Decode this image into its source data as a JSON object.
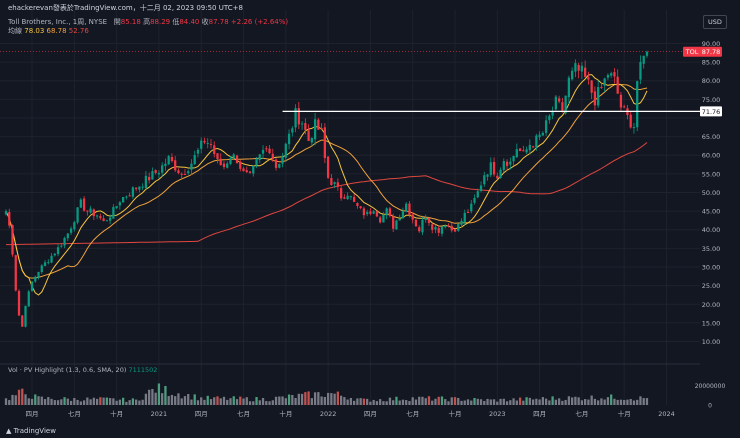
{
  "meta": {
    "publisher_line": "ehackerevan發表於TradingView.com，十二月 02, 2023 09:50 UTC+8",
    "currency_button": "USD",
    "logo_text": "TradingView"
  },
  "legend": {
    "symbol": "Toll Brothers, Inc., 1周, NYSE",
    "open_label": "開",
    "open": "85.18",
    "high_label": "高",
    "high": "88.29",
    "low_label": "低",
    "low": "84.40",
    "close_label": "收",
    "close": "87.78",
    "change": "+2.26 (+2.64%)",
    "ma_label": "均線",
    "ma1": "78.03",
    "ma2": "68.78",
    "ma3": "52.76"
  },
  "volume_header": {
    "text": "Vol · PV Highlight (1.3, 0.6, SMA, 20)",
    "value": "7111502"
  },
  "colors": {
    "background": "#131722",
    "up": "#089981",
    "down": "#f23645",
    "ma1": "#f7c53b",
    "ma2": "#f0a23b",
    "ma3": "#e0473f",
    "price_label_bg": "#f23645",
    "level_label_bg": "#ffffff",
    "grid": "#1e222d",
    "axis_text": "#b2b5be"
  },
  "chart_data": {
    "type": "candlestick",
    "title": "Toll Brothers, Inc., 1周, NYSE",
    "interval": "1W",
    "ylim": [
      4.5,
      92
    ],
    "y_ticks": [
      90,
      85,
      80,
      75,
      70,
      65,
      60,
      55,
      50,
      45,
      40,
      35,
      30,
      25,
      20,
      15,
      10
    ],
    "y_tick_labels": [
      "90.00",
      "85.00",
      "80.00",
      "75.00",
      "70.00",
      "65.00",
      "60.00",
      "55.00",
      "50.00",
      "45.00",
      "40.00",
      "35.00",
      "30.00",
      "25.00",
      "20.00",
      "15.00",
      "10.00"
    ],
    "time_index_range": [
      0,
      205
    ],
    "x_ticks": [
      {
        "label": "四月",
        "t": 8
      },
      {
        "label": "七月",
        "t": 21
      },
      {
        "label": "十月",
        "t": 34
      },
      {
        "label": "2021",
        "t": 47
      },
      {
        "label": "四月",
        "t": 60
      },
      {
        "label": "七月",
        "t": 73
      },
      {
        "label": "十月",
        "t": 86
      },
      {
        "label": "2022",
        "t": 99
      },
      {
        "label": "四月",
        "t": 112
      },
      {
        "label": "七月",
        "t": 125
      },
      {
        "label": "十月",
        "t": 138
      },
      {
        "label": "2023",
        "t": 151
      },
      {
        "label": "四月",
        "t": 164
      },
      {
        "label": "七月",
        "t": 177
      },
      {
        "label": "十月",
        "t": 190
      },
      {
        "label": "2024",
        "t": 203
      }
    ],
    "price_anchors": [
      [
        0,
        45
      ],
      [
        1,
        41
      ],
      [
        2,
        34
      ],
      [
        3,
        24
      ],
      [
        4,
        17
      ],
      [
        5,
        14
      ],
      [
        6,
        20
      ],
      [
        8,
        26
      ],
      [
        10,
        29
      ],
      [
        13,
        32
      ],
      [
        16,
        35
      ],
      [
        19,
        39
      ],
      [
        21,
        43
      ],
      [
        23,
        47
      ],
      [
        25,
        45
      ],
      [
        28,
        44
      ],
      [
        30,
        42
      ],
      [
        33,
        45
      ],
      [
        35,
        48
      ],
      [
        38,
        50
      ],
      [
        41,
        52
      ],
      [
        44,
        54
      ],
      [
        47,
        56
      ],
      [
        50,
        59
      ],
      [
        52,
        57
      ],
      [
        54,
        55
      ],
      [
        57,
        58
      ],
      [
        59,
        61
      ],
      [
        61,
        64
      ],
      [
        63,
        63
      ],
      [
        65,
        58
      ],
      [
        67,
        57
      ],
      [
        69,
        60
      ],
      [
        71,
        59
      ],
      [
        73,
        55
      ],
      [
        75,
        54
      ],
      [
        77,
        58
      ],
      [
        79,
        61
      ],
      [
        81,
        62
      ],
      [
        83,
        57
      ],
      [
        85,
        60
      ],
      [
        87,
        65
      ],
      [
        89,
        71
      ],
      [
        91,
        69
      ],
      [
        93,
        64
      ],
      [
        95,
        68
      ],
      [
        97,
        66
      ],
      [
        98,
        59
      ],
      [
        99,
        54
      ],
      [
        101,
        52
      ],
      [
        103,
        49
      ],
      [
        105,
        50
      ],
      [
        107,
        47
      ],
      [
        109,
        45
      ],
      [
        111,
        44
      ],
      [
        113,
        46
      ],
      [
        115,
        43
      ],
      [
        117,
        45
      ],
      [
        119,
        41
      ],
      [
        121,
        44
      ],
      [
        123,
        47
      ],
      [
        125,
        43
      ],
      [
        127,
        40
      ],
      [
        129,
        44
      ],
      [
        131,
        41
      ],
      [
        133,
        40
      ],
      [
        135,
        42
      ],
      [
        137,
        40
      ],
      [
        139,
        41
      ],
      [
        141,
        44
      ],
      [
        143,
        46
      ],
      [
        145,
        50
      ],
      [
        147,
        55
      ],
      [
        149,
        57
      ],
      [
        151,
        55
      ],
      [
        153,
        59
      ],
      [
        155,
        58
      ],
      [
        157,
        62
      ],
      [
        159,
        60
      ],
      [
        161,
        63
      ],
      [
        163,
        64
      ],
      [
        165,
        66
      ],
      [
        167,
        70
      ],
      [
        169,
        74
      ],
      [
        171,
        72
      ],
      [
        173,
        80
      ],
      [
        175,
        83
      ],
      [
        177,
        82
      ],
      [
        179,
        79
      ],
      [
        181,
        75
      ],
      [
        183,
        78
      ],
      [
        185,
        82
      ],
      [
        187,
        80
      ],
      [
        189,
        73
      ],
      [
        191,
        70
      ],
      [
        193,
        68
      ],
      [
        194,
        80
      ],
      [
        196,
        86
      ],
      [
        197,
        87.78
      ]
    ],
    "overlays": [
      {
        "name": "MA 1 (fast)",
        "last_value": 78.03,
        "color": "#f7c53b"
      },
      {
        "name": "MA 2 (medium)",
        "last_value": 68.78,
        "color": "#f0a23b"
      },
      {
        "name": "MA 3 (slow)",
        "last_value": 52.76,
        "color": "#e0473f"
      }
    ],
    "horizontal_level": {
      "value": 71.76,
      "label": "71.76",
      "from_t": 85,
      "to_t": 205
    },
    "last_price": {
      "value": 87.78,
      "ticker": "TOL",
      "label": "87.78"
    },
    "volume": {
      "ylim": [
        0,
        28000000
      ],
      "y_ticks": [
        20000000,
        0
      ],
      "y_tick_labels": [
        "20000000",
        "0"
      ],
      "anchors": [
        [
          0,
          6
        ],
        [
          5,
          13
        ],
        [
          10,
          7
        ],
        [
          20,
          6
        ],
        [
          30,
          6
        ],
        [
          40,
          5
        ],
        [
          46,
          17
        ],
        [
          60,
          7
        ],
        [
          80,
          6
        ],
        [
          95,
          11
        ],
        [
          100,
          12
        ],
        [
          110,
          5
        ],
        [
          125,
          7
        ],
        [
          140,
          6
        ],
        [
          150,
          5
        ],
        [
          170,
          7
        ],
        [
          185,
          8
        ],
        [
          195,
          7
        ],
        [
          197,
          7.1
        ]
      ],
      "unit": "millions"
    }
  }
}
